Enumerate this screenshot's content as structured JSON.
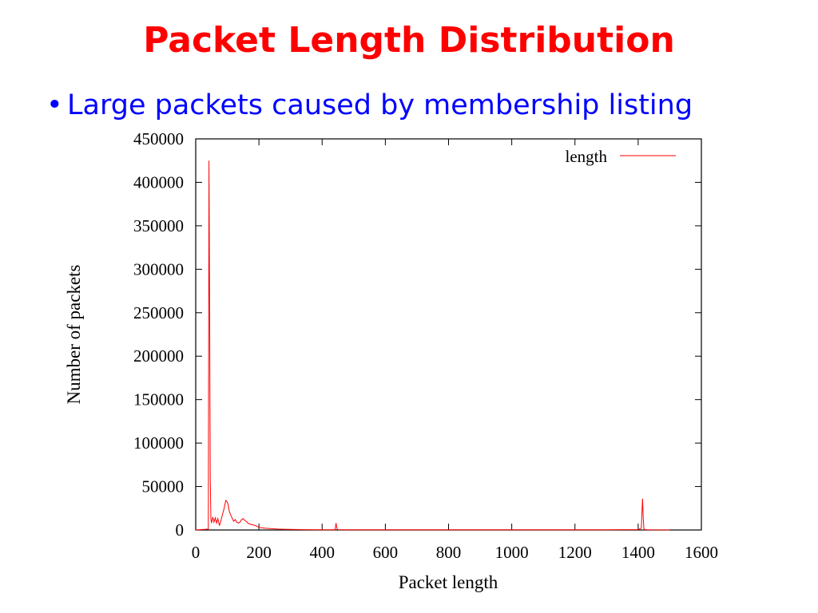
{
  "slide": {
    "title": "Packet Length Distribution",
    "bullet_symbol": "•",
    "bullet_text": "Large packets caused by membership listing"
  },
  "chart_data": {
    "type": "line",
    "title": "",
    "xlabel": "Packet length",
    "ylabel": "Number of packets",
    "xlim": [
      0,
      1600
    ],
    "ylim": [
      0,
      450000
    ],
    "xticks": [
      0,
      200,
      400,
      600,
      800,
      1000,
      1200,
      1400,
      1600
    ],
    "yticks": [
      0,
      50000,
      100000,
      150000,
      200000,
      250000,
      300000,
      350000,
      400000,
      450000
    ],
    "grid": false,
    "legend": {
      "position": "top-right"
    },
    "series": [
      {
        "name": "length",
        "color": "#ff0000",
        "x": [
          0,
          40,
          42,
          44,
          46,
          48,
          50,
          54,
          58,
          62,
          66,
          70,
          75,
          80,
          85,
          90,
          95,
          98,
          102,
          106,
          110,
          115,
          120,
          125,
          130,
          135,
          140,
          145,
          150,
          155,
          160,
          165,
          170,
          180,
          190,
          200,
          210,
          220,
          240,
          260,
          280,
          300,
          350,
          400,
          440,
          442,
          444,
          446,
          448,
          450,
          452,
          500,
          600,
          700,
          800,
          900,
          1000,
          1100,
          1200,
          1300,
          1400,
          1410,
          1412,
          1414,
          1416,
          1418,
          1420,
          1425,
          1430,
          1500
        ],
        "values": [
          0,
          1000,
          425000,
          260000,
          60000,
          13000,
          8000,
          15000,
          9000,
          14000,
          8000,
          13000,
          5000,
          11000,
          18000,
          25000,
          34000,
          33000,
          30000,
          22000,
          18000,
          14000,
          10000,
          12000,
          9000,
          8000,
          9000,
          12000,
          13000,
          11000,
          10000,
          8000,
          7000,
          6000,
          5000,
          3000,
          2500,
          2000,
          1500,
          1000,
          800,
          600,
          400,
          300,
          300,
          3000,
          8000,
          3000,
          800,
          500,
          300,
          300,
          200,
          200,
          200,
          200,
          200,
          200,
          200,
          200,
          500,
          2000,
          20000,
          36000,
          15000,
          2000,
          500,
          300,
          200,
          100
        ]
      }
    ]
  }
}
